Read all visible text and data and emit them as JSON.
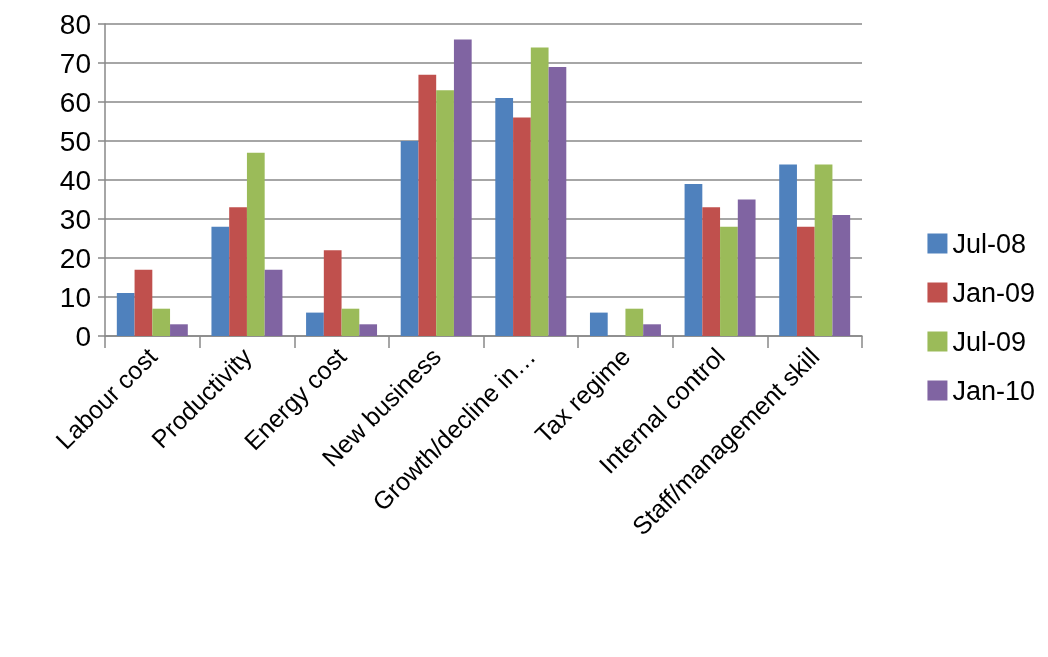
{
  "chart_data": {
    "type": "bar",
    "categories": [
      "Labour cost",
      "Productivity",
      "Energy cost",
      "New business",
      "Growth/decline in…",
      "Tax regime",
      "Internal control",
      "Staff/management skill"
    ],
    "series": [
      {
        "name": "Jul-08",
        "color": "#4f81bd",
        "values": [
          11,
          28,
          6,
          50,
          61,
          6,
          39,
          44
        ]
      },
      {
        "name": "Jan-09",
        "color": "#c0504d",
        "values": [
          17,
          33,
          22,
          67,
          56,
          0,
          33,
          28
        ]
      },
      {
        "name": "Jul-09",
        "color": "#9bbb59",
        "values": [
          7,
          47,
          7,
          63,
          74,
          7,
          28,
          44
        ]
      },
      {
        "name": "Jan-10",
        "color": "#8064a2",
        "values": [
          3,
          17,
          3,
          76,
          69,
          3,
          35,
          31
        ]
      }
    ],
    "ylim": [
      0,
      80
    ],
    "yticks": [
      0,
      10,
      20,
      30,
      40,
      50,
      60,
      70,
      80
    ],
    "grid": "y",
    "legend": "right"
  }
}
